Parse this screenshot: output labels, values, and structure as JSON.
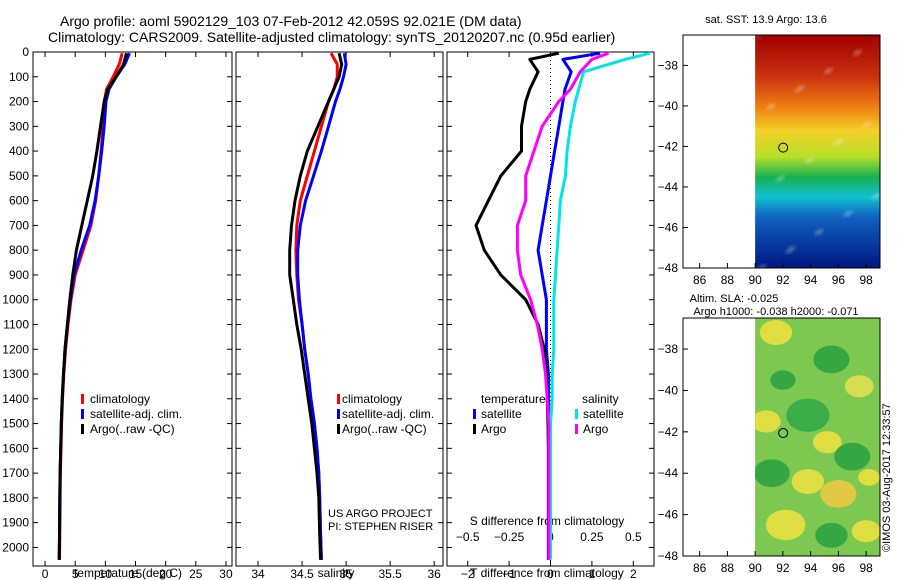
{
  "header": {
    "line1": "Argo profile: aoml 5902129_103 07-Feb-2012 42.059S 92.021E (DM data)",
    "line2": "Climatology: CARS2009. Satellite-adjusted climatology: synTS_20120207.nc (0.95d earlier)",
    "sst_title": "sat. SST: 13.9 Argo: 13.6",
    "sla_title": "Altim. SLA: -0.025",
    "sla_sub": "Argo h1000: -0.038 h2000: -0.071",
    "project": "US ARGO PROJECT",
    "pi": "PI: STEPHEN RISER",
    "side_stamp": "©IMOS 03-Aug-2017 12:33:57"
  },
  "colors": {
    "climatology": "#ff0000",
    "satellite": "#0000ff",
    "argo": "#000000",
    "sat_sal": "#00e5e5",
    "argo_sal": "#ff00ff"
  },
  "chart_data": [
    {
      "id": "temp",
      "type": "line",
      "xlabel": "temperature (deg C)",
      "xlim": [
        -2,
        31
      ],
      "xticks": [
        0,
        5,
        10,
        15,
        20,
        25,
        30
      ],
      "ylim": [
        2075,
        0
      ],
      "yticks": [
        0,
        100,
        200,
        300,
        400,
        500,
        600,
        700,
        800,
        900,
        1000,
        1100,
        1200,
        1300,
        1400,
        1500,
        1600,
        1700,
        1800,
        1900,
        2000
      ],
      "legend": [
        "climatology",
        "satellite-adj. clim.",
        "Argo(..raw -QC)"
      ],
      "series": [
        {
          "name": "climatology",
          "color": "climatology",
          "x": [
            12.8,
            12.3,
            11.3,
            10.2,
            9.8,
            9.6,
            9.3,
            8.9,
            8.4,
            7.6,
            6.3,
            5.0,
            4.3,
            3.8,
            3.4,
            3.1,
            2.9,
            2.75,
            2.65,
            2.55,
            2.5,
            2.45,
            2.4
          ],
          "y": [
            5,
            50,
            100,
            150,
            200,
            300,
            400,
            500,
            600,
            700,
            800,
            900,
            1000,
            1100,
            1200,
            1300,
            1400,
            1500,
            1600,
            1700,
            1800,
            1950,
            2050
          ]
        },
        {
          "name": "satellite-adj. clim.",
          "color": "satellite",
          "x": [
            14.0,
            13.2,
            11.8,
            10.6,
            10.1,
            9.8,
            9.4,
            8.9,
            8.3,
            7.4,
            6.0,
            4.8,
            4.2,
            3.7,
            3.3,
            3.05,
            2.85,
            2.7,
            2.6,
            2.5,
            2.45,
            2.4,
            2.35
          ],
          "y": [
            5,
            50,
            100,
            150,
            200,
            300,
            400,
            500,
            600,
            700,
            800,
            900,
            1000,
            1100,
            1200,
            1300,
            1400,
            1500,
            1600,
            1700,
            1800,
            1950,
            2050
          ]
        },
        {
          "name": "Argo",
          "color": "argo",
          "x": [
            13.5,
            13.0,
            11.8,
            10.4,
            9.8,
            9.2,
            8.6,
            7.9,
            7.0,
            6.1,
            5.2,
            4.6,
            4.1,
            3.7,
            3.3,
            3.05,
            2.85,
            2.7,
            2.6,
            2.5,
            2.45,
            2.4,
            2.35
          ],
          "y": [
            5,
            50,
            100,
            150,
            200,
            300,
            400,
            500,
            600,
            700,
            800,
            900,
            1000,
            1100,
            1200,
            1300,
            1400,
            1500,
            1600,
            1700,
            1800,
            1950,
            2050
          ]
        }
      ]
    },
    {
      "id": "sal",
      "type": "line",
      "xlabel": "salinity",
      "xlim": [
        33.75,
        36.1
      ],
      "xticks": [
        34,
        34.5,
        35,
        35.5,
        36
      ],
      "ylim": [
        2075,
        0
      ],
      "legend": [
        "climatology",
        "satellite-adj. clim.",
        "Argo(..raw -QC)"
      ],
      "series": [
        {
          "name": "climatology",
          "color": "climatology",
          "x": [
            34.83,
            34.9,
            34.9,
            34.86,
            34.8,
            34.72,
            34.64,
            34.56,
            34.48,
            34.44,
            34.43,
            34.44,
            34.46,
            34.5,
            34.53,
            34.57,
            34.6,
            34.64,
            34.67,
            34.69,
            34.7,
            34.71,
            34.72
          ],
          "y": [
            5,
            50,
            100,
            150,
            200,
            300,
            400,
            500,
            600,
            700,
            800,
            900,
            1000,
            1100,
            1200,
            1300,
            1400,
            1500,
            1600,
            1700,
            1800,
            1950,
            2050
          ]
        },
        {
          "name": "satellite-adj. clim.",
          "color": "satellite",
          "x": [
            34.98,
            35.0,
            34.97,
            34.93,
            34.88,
            34.8,
            34.72,
            34.63,
            34.54,
            34.48,
            34.45,
            34.45,
            34.47,
            34.5,
            34.53,
            34.57,
            34.6,
            34.64,
            34.67,
            34.69,
            34.7,
            34.71,
            34.72
          ],
          "y": [
            5,
            50,
            100,
            150,
            200,
            300,
            400,
            500,
            600,
            700,
            800,
            900,
            1000,
            1100,
            1200,
            1300,
            1400,
            1500,
            1600,
            1700,
            1800,
            1950,
            2050
          ]
        },
        {
          "name": "Argo",
          "color": "argo",
          "x": [
            34.92,
            34.95,
            34.92,
            34.86,
            34.8,
            34.68,
            34.56,
            34.48,
            34.42,
            34.38,
            34.36,
            34.36,
            34.4,
            34.44,
            34.49,
            34.53,
            34.57,
            34.61,
            34.64,
            34.67,
            34.69,
            34.7,
            34.71
          ],
          "y": [
            5,
            50,
            100,
            150,
            200,
            300,
            400,
            500,
            600,
            700,
            800,
            900,
            1000,
            1100,
            1200,
            1300,
            1400,
            1500,
            1600,
            1700,
            1800,
            1950,
            2050
          ]
        }
      ]
    },
    {
      "id": "diff",
      "type": "line",
      "xlabel": "T difference from climatology",
      "xlabel2": "S difference from climatology",
      "xlim": [
        -2.5,
        2.5
      ],
      "xticks": [
        -2,
        -1,
        0,
        1,
        2
      ],
      "xticks_top": [
        -0.5,
        -0.25,
        0,
        0.25,
        0.5
      ],
      "ylim": [
        2075,
        0
      ],
      "legend_temp": [
        "temperature",
        "satellite",
        "Argo"
      ],
      "legend_sal": [
        "salinity",
        "satellite",
        "Argo"
      ],
      "series": [
        {
          "name": "temperature satellite",
          "color": "satellite",
          "x": [
            1.2,
            0.3,
            0.5,
            0.35,
            0.3,
            0.2,
            0.1,
            0.0,
            -0.1,
            -0.2,
            -0.3,
            -0.2,
            -0.1,
            -0.1,
            -0.1,
            -0.05,
            -0.05,
            -0.05,
            -0.05,
            -0.05,
            -0.05,
            -0.05
          ],
          "y": [
            5,
            30,
            80,
            150,
            200,
            300,
            400,
            500,
            600,
            700,
            800,
            900,
            1000,
            1100,
            1200,
            1300,
            1400,
            1500,
            1600,
            1700,
            1900,
            2050
          ]
        },
        {
          "name": "temperature Argo",
          "color": "argo",
          "x": [
            0.2,
            -0.5,
            -0.3,
            -0.5,
            -0.6,
            -0.7,
            -0.7,
            -1.2,
            -1.5,
            -1.8,
            -1.6,
            -1.2,
            -0.6,
            -0.3,
            -0.15,
            -0.1,
            -0.08,
            -0.06,
            -0.05,
            -0.05,
            -0.05,
            -0.05
          ],
          "y": [
            5,
            30,
            80,
            150,
            200,
            300,
            400,
            500,
            600,
            700,
            800,
            900,
            1000,
            1100,
            1200,
            1300,
            1400,
            1500,
            1600,
            1700,
            1900,
            2050
          ]
        },
        {
          "name": "salinity satellite",
          "color": "sat_sal",
          "x": [
            0.6,
            0.45,
            0.2,
            0.17,
            0.15,
            0.12,
            0.1,
            0.09,
            0.06,
            0.05,
            0.04,
            0.03,
            0.02,
            0.02,
            0.02,
            0.01,
            0.01,
            0.0,
            0.0,
            0.0,
            0.0,
            0.0
          ],
          "y": [
            5,
            30,
            80,
            150,
            200,
            300,
            400,
            500,
            600,
            700,
            800,
            900,
            1000,
            1100,
            1200,
            1300,
            1400,
            1500,
            1600,
            1700,
            1900,
            2050
          ]
        },
        {
          "name": "salinity Argo",
          "color": "argo_sal",
          "x": [
            0.35,
            0.25,
            0.18,
            0.12,
            0.05,
            -0.05,
            -0.1,
            -0.15,
            -0.15,
            -0.2,
            -0.2,
            -0.18,
            -0.12,
            -0.08,
            -0.05,
            -0.03,
            -0.02,
            -0.01,
            -0.01,
            -0.01,
            -0.01,
            -0.01
          ],
          "y": [
            5,
            30,
            80,
            150,
            200,
            300,
            400,
            500,
            600,
            700,
            800,
            900,
            1000,
            1100,
            1200,
            1300,
            1400,
            1500,
            1600,
            1700,
            1900,
            2050
          ]
        }
      ]
    },
    {
      "id": "sst_map",
      "type": "heatmap",
      "xlim": [
        84.8,
        99
      ],
      "ylim": [
        -48,
        -36.5
      ],
      "xticks": [
        86,
        88,
        90,
        92,
        94,
        96,
        98
      ],
      "yticks": [
        -38,
        -40,
        -42,
        -44,
        -46,
        -48
      ],
      "data_extent_lon": [
        90,
        99
      ],
      "marker": {
        "lon": 92.021,
        "lat": -42.059
      },
      "gradient": [
        {
          "lat": -36.5,
          "color": "#a00000"
        },
        {
          "lat": -38.5,
          "color": "#c83010"
        },
        {
          "lat": -40.0,
          "color": "#ee7b10"
        },
        {
          "lat": -41.2,
          "color": "#f4cf28"
        },
        {
          "lat": -42.5,
          "color": "#b8e028"
        },
        {
          "lat": -43.5,
          "color": "#18b050"
        },
        {
          "lat": -44.5,
          "color": "#10c0d0"
        },
        {
          "lat": -45.5,
          "color": "#1060c0"
        },
        {
          "lat": -48.0,
          "color": "#001880"
        }
      ]
    },
    {
      "id": "sla_map",
      "type": "heatmap",
      "xlim": [
        84.8,
        99
      ],
      "ylim": [
        -48,
        -36.5
      ],
      "xticks": [
        86,
        88,
        90,
        92,
        94,
        96,
        98
      ],
      "yticks": [
        -38,
        -40,
        -42,
        -44,
        -46,
        -48
      ],
      "data_extent_lon": [
        90,
        99
      ],
      "marker": {
        "lon": 92.021,
        "lat": -42.059
      },
      "base_color": "#7cc850",
      "blobs": [
        {
          "lon": 91.5,
          "lat": -37.2,
          "r": 0.9,
          "color": "#f0e040"
        },
        {
          "lon": 95.5,
          "lat": -38.5,
          "r": 1.0,
          "color": "#2aa040"
        },
        {
          "lon": 92.0,
          "lat": -39.5,
          "r": 0.7,
          "color": "#2aa040"
        },
        {
          "lon": 97.5,
          "lat": -39.8,
          "r": 0.8,
          "color": "#e8e050"
        },
        {
          "lon": 93.8,
          "lat": -41.2,
          "r": 1.2,
          "color": "#30a848"
        },
        {
          "lon": 90.8,
          "lat": -41.5,
          "r": 0.8,
          "color": "#f0e040"
        },
        {
          "lon": 95.2,
          "lat": -42.5,
          "r": 0.8,
          "color": "#f0e040"
        },
        {
          "lon": 97.0,
          "lat": -43.2,
          "r": 1.0,
          "color": "#2aa040"
        },
        {
          "lon": 91.2,
          "lat": -44.0,
          "r": 1.0,
          "color": "#2aa040"
        },
        {
          "lon": 93.8,
          "lat": -44.4,
          "r": 0.9,
          "color": "#f0e040"
        },
        {
          "lon": 96.0,
          "lat": -45.0,
          "r": 1.0,
          "color": "#f2c840"
        },
        {
          "lon": 98.2,
          "lat": -44.2,
          "r": 0.6,
          "color": "#f0e040"
        },
        {
          "lon": 92.2,
          "lat": -46.5,
          "r": 1.1,
          "color": "#f0e040"
        },
        {
          "lon": 95.5,
          "lat": -47.0,
          "r": 0.9,
          "color": "#2aa040"
        },
        {
          "lon": 98.0,
          "lat": -46.8,
          "r": 0.8,
          "color": "#f0e040"
        }
      ]
    }
  ]
}
